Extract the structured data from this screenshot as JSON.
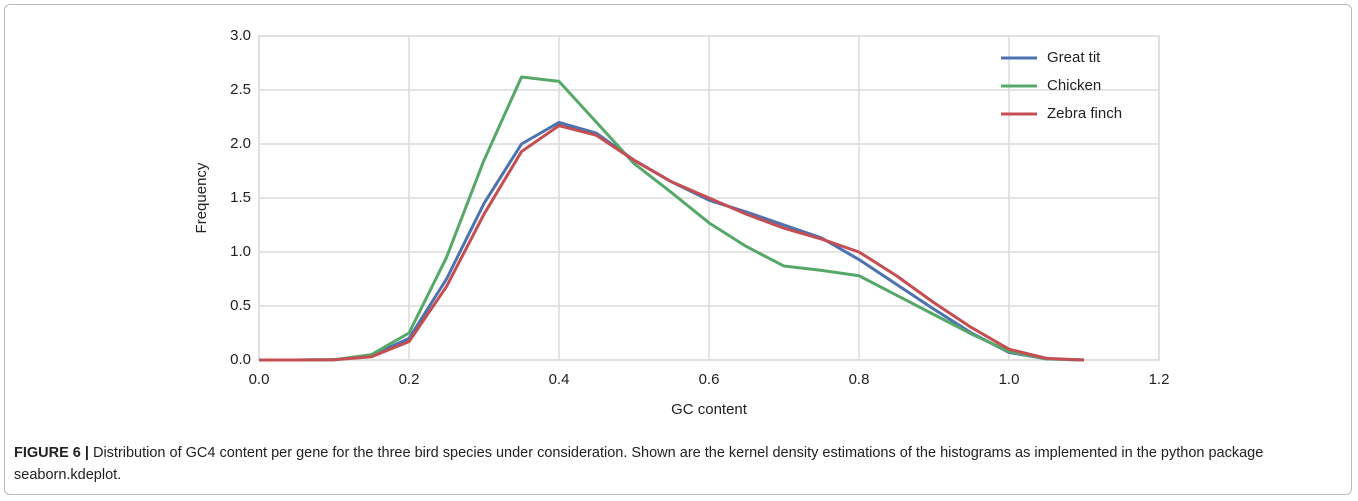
{
  "chart_data": {
    "type": "line",
    "xlabel": "GC content",
    "ylabel": "Frequency",
    "x": [
      0,
      0.05,
      0.1,
      0.15,
      0.2,
      0.25,
      0.3,
      0.35,
      0.4,
      0.45,
      0.5,
      0.55,
      0.6,
      0.65,
      0.7,
      0.75,
      0.8,
      0.85,
      0.9,
      0.95,
      1.0,
      1.05,
      1.1
    ],
    "series": [
      {
        "name": "Great tit",
        "color": "#4c72b0",
        "values": [
          0,
          0,
          0.002,
          0.04,
          0.2,
          0.75,
          1.45,
          2.0,
          2.2,
          2.1,
          1.85,
          1.65,
          1.48,
          1.37,
          1.25,
          1.13,
          0.93,
          0.7,
          0.47,
          0.25,
          0.07,
          0.01,
          0
        ]
      },
      {
        "name": "Chicken",
        "color": "#55a868",
        "values": [
          0,
          0,
          0.003,
          0.05,
          0.25,
          0.95,
          1.85,
          2.62,
          2.58,
          2.2,
          1.82,
          1.55,
          1.27,
          1.05,
          0.87,
          0.83,
          0.78,
          0.6,
          0.42,
          0.24,
          0.08,
          0.01,
          0
        ]
      },
      {
        "name": "Zebra finch",
        "color": "#c44e52",
        "values": [
          0,
          0,
          0.002,
          0.03,
          0.17,
          0.68,
          1.35,
          1.93,
          2.17,
          2.08,
          1.85,
          1.65,
          1.5,
          1.35,
          1.22,
          1.12,
          1.0,
          0.78,
          0.53,
          0.3,
          0.1,
          0.015,
          0
        ]
      }
    ],
    "xlim": [
      0,
      1.2
    ],
    "xticks": [
      {
        "value": 0,
        "label": "0.0"
      },
      {
        "value": 0.2,
        "label": "0.2"
      },
      {
        "value": 0.4,
        "label": "0.4"
      },
      {
        "value": 0.6,
        "label": "0.6"
      },
      {
        "value": 0.8,
        "label": "0.8"
      },
      {
        "value": 1,
        "label": "1.0"
      },
      {
        "value": 1.2,
        "label": "1.2"
      }
    ],
    "ylim": [
      0,
      3
    ],
    "yticks": [
      {
        "value": 0,
        "label": "0.0"
      },
      {
        "value": 0.5,
        "label": "0.5"
      },
      {
        "value": 1,
        "label": "1.0"
      },
      {
        "value": 1.5,
        "label": "1.5"
      },
      {
        "value": 2,
        "label": "2.0"
      },
      {
        "value": 2.5,
        "label": "2.5"
      },
      {
        "value": 3,
        "label": "3.0"
      }
    ],
    "grid": true,
    "legend": "upper right",
    "caption_label": "FIGURE 6 |",
    "caption": "Distribution of GC4 content per gene for the three bird species under consideration. Shown are the kernel density estimations of the histograms as implemented in the python package seaborn.kdeplot."
  }
}
